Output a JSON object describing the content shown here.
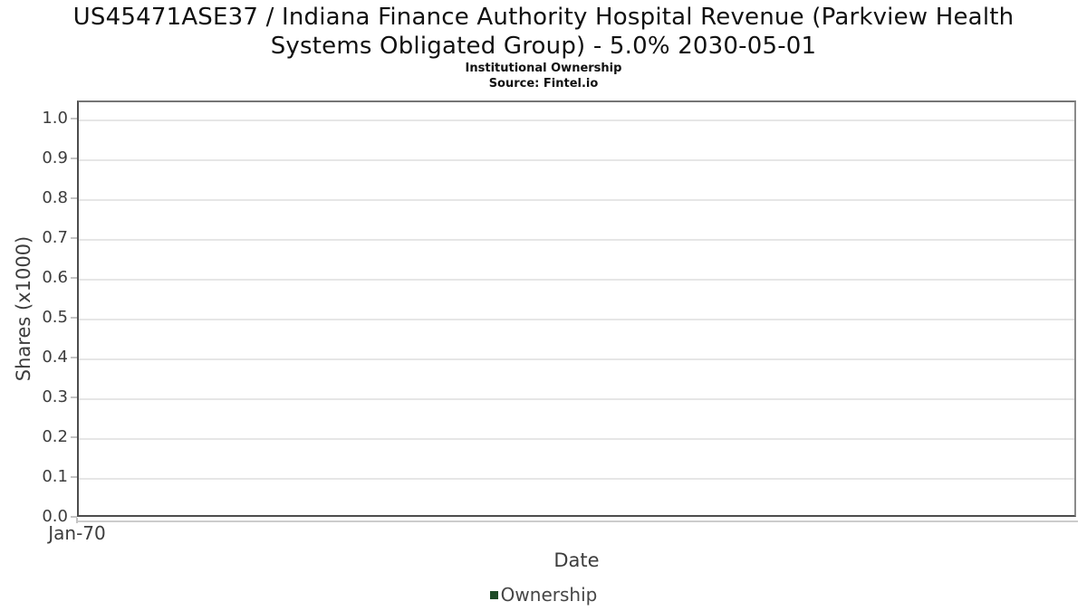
{
  "header": {
    "title": "US45471ASE37 / Indiana Finance Authority Hospital Revenue (Parkview Health Systems Obligated Group) - 5.0% 2030-05-01",
    "subtitle": "Institutional Ownership",
    "source": "Source: Fintel.io"
  },
  "chart_data": {
    "type": "line",
    "title": "US45471ASE37 / Indiana Finance Authority Hospital Revenue (Parkview Health Systems Obligated Group) - 5.0% 2030-05-01",
    "subtitle": "Institutional Ownership",
    "source": "Source: Fintel.io",
    "xlabel": "Date",
    "ylabel": "Shares (x1000)",
    "x_tick_labels": [
      "Jan-70"
    ],
    "y_ticks": [
      0.0,
      0.1,
      0.2,
      0.3,
      0.4,
      0.5,
      0.6,
      0.7,
      0.8,
      0.9,
      1.0
    ],
    "y_tick_labels": [
      "0.0",
      "0.1",
      "0.2",
      "0.3",
      "0.4",
      "0.5",
      "0.6",
      "0.7",
      "0.8",
      "0.9",
      "1.0"
    ],
    "ylim": [
      0,
      1.045
    ],
    "grid": "horizontal",
    "legend_position": "bottom",
    "series": [
      {
        "name": "Ownership",
        "color": "#1e4b27",
        "x": [],
        "values": []
      }
    ],
    "colors": {
      "ownership_series": "#1e4b27",
      "gridline": "#e6e6e6",
      "axis_border": "#4d4d4d",
      "tick_text": "#3d3d3d"
    }
  }
}
